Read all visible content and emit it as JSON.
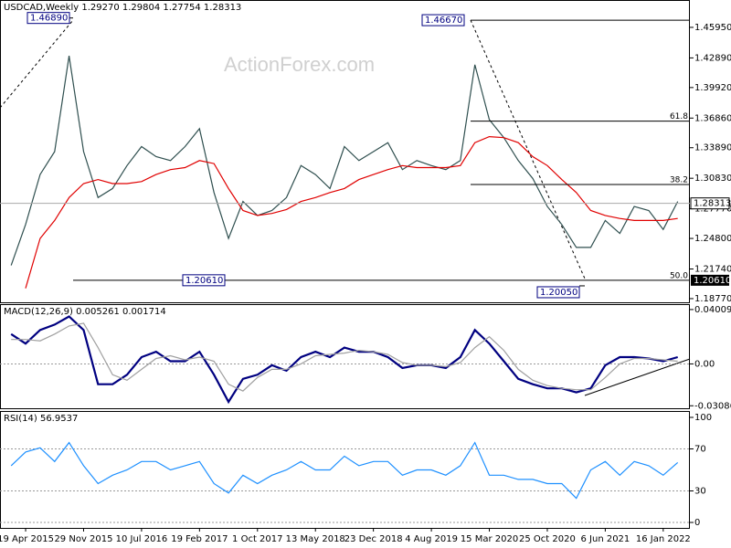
{
  "chart_data": [
    {
      "type": "line",
      "title": "USDCAD,Weekly  1.29270 1.29804 1.27754 1.28313",
      "watermark": "ActionForex.com",
      "x": [
        "2015-02-22",
        "2015-04-19",
        "2015-06-14",
        "2015-08-09",
        "2015-10-04",
        "2015-11-29",
        "2016-01-24",
        "2016-03-20",
        "2016-05-15",
        "2016-07-10",
        "2016-09-04",
        "2016-10-30",
        "2016-12-25",
        "2017-02-19",
        "2017-04-16",
        "2017-06-11",
        "2017-08-06",
        "2017-10-01",
        "2017-11-26",
        "2018-01-21",
        "2018-03-18",
        "2018-05-13",
        "2018-07-08",
        "2018-09-02",
        "2018-10-28",
        "2018-12-23",
        "2019-02-17",
        "2019-04-14",
        "2019-06-09",
        "2019-08-04",
        "2019-09-29",
        "2019-11-24",
        "2020-01-19",
        "2020-03-15",
        "2020-05-10",
        "2020-07-05",
        "2020-08-30",
        "2020-10-25",
        "2020-12-20",
        "2021-02-14",
        "2021-04-11",
        "2021-06-06",
        "2021-08-01",
        "2021-09-26",
        "2021-11-21",
        "2022-01-16",
        "2022-03-13"
      ],
      "xlim": [
        "2015-01-10",
        "2022-04-29"
      ],
      "xticks": [
        {
          "value": "2015-04-19",
          "label": "19 Apr 2015"
        },
        {
          "value": "2015-11-29",
          "label": "29 Nov 2015"
        },
        {
          "value": "2016-07-10",
          "label": "10 Jul 2016"
        },
        {
          "value": "2017-02-19",
          "label": "19 Feb 2017"
        },
        {
          "value": "2017-10-01",
          "label": "1 Oct 2017"
        },
        {
          "value": "2018-05-13",
          "label": "13 May 2018"
        },
        {
          "value": "2018-12-23",
          "label": "23 Dec 2018"
        },
        {
          "value": "2019-08-04",
          "label": "4 Aug 2019"
        },
        {
          "value": "2020-03-15",
          "label": "15 Mar 2020"
        },
        {
          "value": "2020-10-25",
          "label": "25 Oct 2020"
        },
        {
          "value": "2021-06-06",
          "label": "6 Jun 2021"
        },
        {
          "value": "2022-01-16",
          "label": "16 Jan 2022"
        }
      ],
      "ylim": [
        1.184,
        1.486
      ],
      "yticks": [
        {
          "value": 1.4595,
          "label": "1.45950"
        },
        {
          "value": 1.4289,
          "label": "1.42890"
        },
        {
          "value": 1.3992,
          "label": "1.39920"
        },
        {
          "value": 1.3686,
          "label": "1.36860"
        },
        {
          "value": 1.3389,
          "label": "1.33890"
        },
        {
          "value": 1.3083,
          "label": "1.30830"
        },
        {
          "value": 1.2777,
          "label": "1.27770"
        },
        {
          "value": 1.248,
          "label": "1.24800"
        },
        {
          "value": 1.2174,
          "label": "1.21740"
        },
        {
          "value": 1.1877,
          "label": "1.18770"
        }
      ],
      "series": [
        {
          "color": "#2f4f4f",
          "values": [
            1.221,
            1.262,
            1.312,
            1.335,
            1.431,
            1.335,
            1.289,
            1.298,
            1.321,
            1.34,
            1.33,
            1.326,
            1.34,
            1.358,
            1.294,
            1.248,
            1.285,
            1.271,
            1.276,
            1.289,
            1.321,
            1.312,
            1.298,
            1.34,
            1.326,
            1.335,
            1.344,
            1.317,
            1.326,
            1.321,
            1.317,
            1.326,
            1.422,
            1.367,
            1.349,
            1.326,
            1.308,
            1.28,
            1.262,
            1.239,
            1.239,
            1.266,
            1.253,
            1.28,
            1.276,
            1.257,
            1.285
          ]
        },
        {
          "color": "#e00000",
          "values": [
            null,
            1.198,
            1.248,
            1.266,
            1.289,
            1.303,
            1.307,
            1.303,
            1.303,
            1.305,
            1.312,
            1.317,
            1.319,
            1.326,
            1.323,
            1.298,
            1.276,
            1.271,
            1.273,
            1.277,
            1.285,
            1.289,
            1.294,
            1.298,
            1.307,
            1.312,
            1.317,
            1.321,
            1.319,
            1.319,
            1.319,
            1.321,
            1.344,
            1.35,
            1.349,
            1.344,
            1.33,
            1.321,
            1.307,
            1.294,
            1.276,
            1.271,
            1.268,
            1.266,
            1.266,
            1.266,
            1.268
          ]
        }
      ],
      "current_price": {
        "value": 1.28313,
        "label": "1.28313"
      },
      "support_tag": {
        "value": 1.2061,
        "label": "1.20610"
      },
      "annotations": [
        {
          "value": 1.4689,
          "label": "1.46890"
        },
        {
          "value": 1.4667,
          "label": "1.46670"
        },
        {
          "value": 1.2061,
          "label": "1.20610"
        },
        {
          "value": 1.2005,
          "label": "1.20050"
        }
      ],
      "fib_levels": [
        {
          "level": 61.8,
          "price": 1.3655
        },
        {
          "level": 38.2,
          "price": 1.3021
        },
        {
          "level": {
            "value": 50,
            "label": "50.0"
          },
          "price": 1.2061
        }
      ]
    },
    {
      "type": "line",
      "title": "MACD(12,26,9) 0.005261 0.001714",
      "ylim": [
        -0.0327,
        0.0434
      ],
      "yticks": [
        0.040094,
        {
          "value": 0,
          "label": "0.00"
        },
        -0.03086
      ],
      "series": [
        {
          "color": "#000080",
          "values": [
            0.022,
            0.015,
            0.025,
            0.029,
            0.035,
            0.025,
            -0.015,
            -0.015,
            -0.008,
            0.005,
            0.009,
            0.002,
            0.002,
            0.009,
            -0.008,
            -0.028,
            -0.011,
            -0.008,
            -0.001,
            -0.005,
            0.005,
            0.009,
            0.005,
            0.012,
            0.009,
            0.009,
            0.005,
            -0.003,
            -0.001,
            -0.001,
            -0.003,
            0.005,
            0.025,
            0.015,
            0.002,
            -0.011,
            -0.015,
            -0.018,
            -0.018,
            -0.021,
            -0.018,
            -0.001,
            0.005,
            0.005,
            0.004,
            0.002,
            0.005
          ]
        },
        {
          "color": "#a0a0a0",
          "values": [
            0.018,
            0.018,
            0.017,
            0.022,
            0.028,
            0.03,
            0.012,
            -0.008,
            -0.012,
            -0.004,
            0.004,
            0.006,
            0.003,
            0.005,
            0.002,
            -0.015,
            -0.02,
            -0.01,
            -0.004,
            -0.004,
            0,
            0.006,
            0.007,
            0.008,
            0.01,
            0.009,
            0.007,
            0.001,
            -0.001,
            -0.001,
            -0.002,
            0.001,
            0.012,
            0.02,
            0.01,
            -0.004,
            -0.012,
            -0.016,
            -0.018,
            -0.019,
            -0.019,
            -0.01,
            0,
            0.004,
            0.004,
            0.003,
            0.002
          ]
        }
      ]
    },
    {
      "type": "line",
      "title": "RSI(14) 56.9537",
      "ylim": [
        -5.2,
        105.2
      ],
      "yticks": [
        100,
        70,
        30,
        0
      ],
      "levels": [
        70,
        30
      ],
      "series": [
        {
          "color": "#1e90ff",
          "values": [
            54,
            67,
            71,
            58,
            76,
            54,
            37,
            45,
            50,
            58,
            58,
            50,
            54,
            58,
            37,
            28,
            45,
            37,
            45,
            50,
            58,
            50,
            50,
            63,
            54,
            58,
            58,
            45,
            50,
            50,
            45,
            54,
            76,
            45,
            45,
            41,
            41,
            37,
            37,
            23,
            50,
            58,
            45,
            58,
            54,
            45,
            57
          ]
        }
      ]
    }
  ]
}
